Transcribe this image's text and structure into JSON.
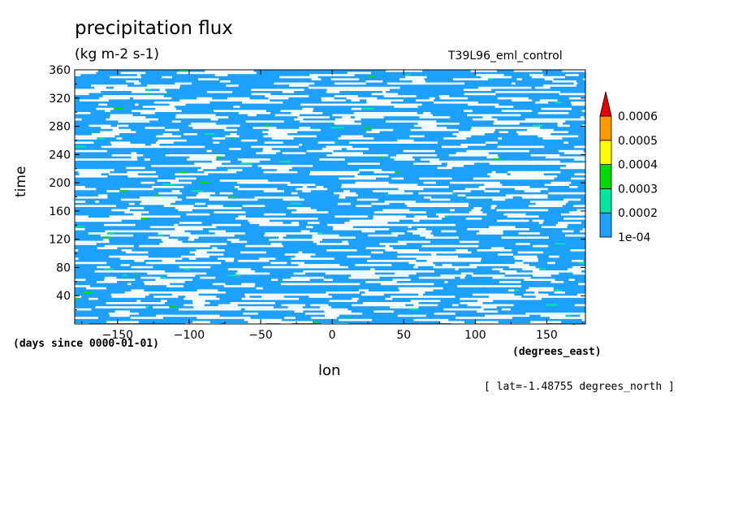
{
  "chart_data": {
    "type": "heatmap",
    "title": "precipitation flux",
    "units": "(kg m-2 s-1)",
    "experiment": "T39L96_eml_control",
    "xlabel": "lon",
    "x_units": "(degrees_east)",
    "ylabel": "time",
    "y_units": "(days since 0000-01-01)",
    "annotation": "[ lat=-1.48755 degrees_north ]",
    "xlim": [
      -180,
      177
    ],
    "ylim": [
      0,
      360
    ],
    "x_ticks": [
      -150,
      -100,
      -50,
      0,
      50,
      100,
      150
    ],
    "x_tick_labels": [
      "−150",
      "−100",
      "−50",
      "0",
      "50",
      "100",
      "150"
    ],
    "y_ticks": [
      40,
      80,
      120,
      160,
      200,
      240,
      280,
      320,
      360
    ],
    "colorbar": {
      "levels": [
        "1e-04",
        "0.0002",
        "0.0003",
        "0.0004",
        "0.0005",
        "0.0006"
      ],
      "colors": [
        "#1ea0ff",
        "#00e6a0",
        "#00dc00",
        "#ffff00",
        "#ff9a00",
        "#e60000"
      ],
      "extend": "max"
    },
    "below_min_color": "#ffffff",
    "dominant_band": "1e-04 to 0.0002"
  }
}
